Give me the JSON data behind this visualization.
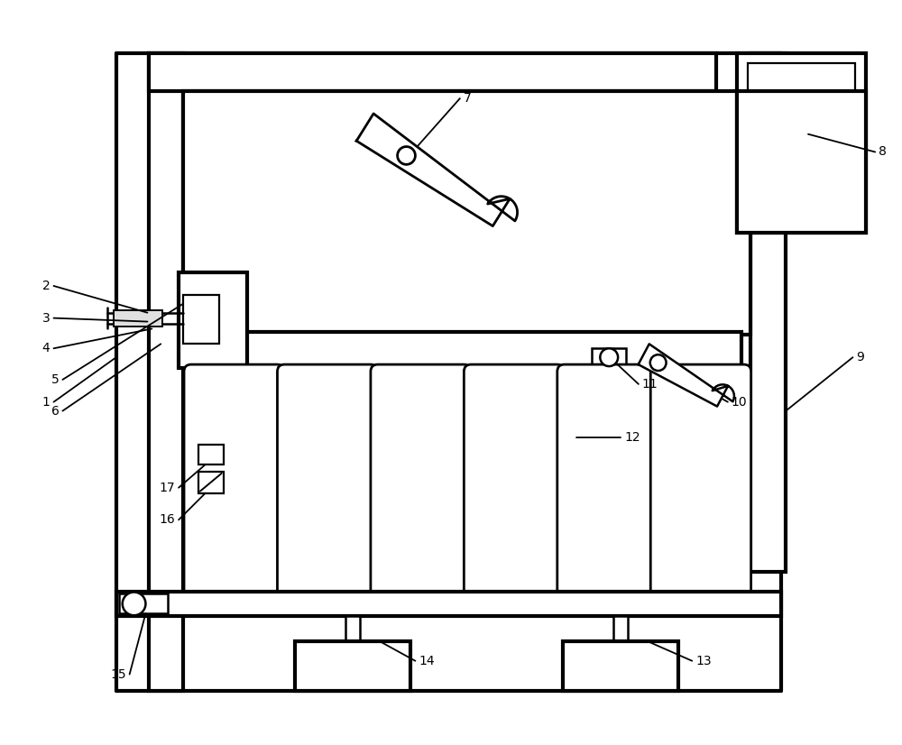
{
  "bg_color": "#ffffff",
  "lc": "#000000",
  "lw": 2.0,
  "fig_w": 10.0,
  "fig_h": 8.26
}
